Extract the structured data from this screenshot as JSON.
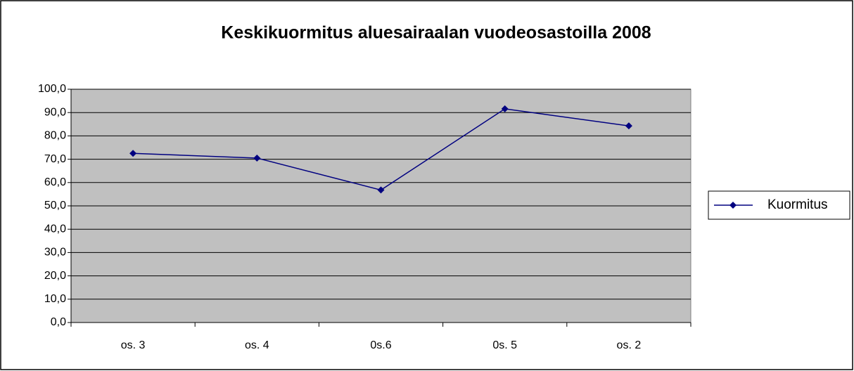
{
  "chart_data": {
    "type": "line",
    "title": "Keskikuormitus aluesairaalan vuodeosastoilla 2008",
    "categories": [
      "os. 3",
      "os. 4",
      "0s.6",
      "0s. 5",
      "os. 2"
    ],
    "series": [
      {
        "name": "Kuormitus",
        "color": "#000080",
        "values": [
          72.5,
          70.5,
          56.8,
          91.6,
          84.3
        ]
      }
    ],
    "ylim": [
      0,
      100
    ],
    "yticks": [
      {
        "value": 0,
        "label": "0,0"
      },
      {
        "value": 10,
        "label": "10,0"
      },
      {
        "value": 20,
        "label": "20,0"
      },
      {
        "value": 30,
        "label": "30,0"
      },
      {
        "value": 40,
        "label": "40,0"
      },
      {
        "value": 50,
        "label": "50,0"
      },
      {
        "value": 60,
        "label": "60,0"
      },
      {
        "value": 70,
        "label": "70,0"
      },
      {
        "value": 80,
        "label": "80,0"
      },
      {
        "value": 90,
        "label": "90,0"
      },
      {
        "value": 100,
        "label": "100,0"
      }
    ],
    "grid": true,
    "legend": "right"
  }
}
